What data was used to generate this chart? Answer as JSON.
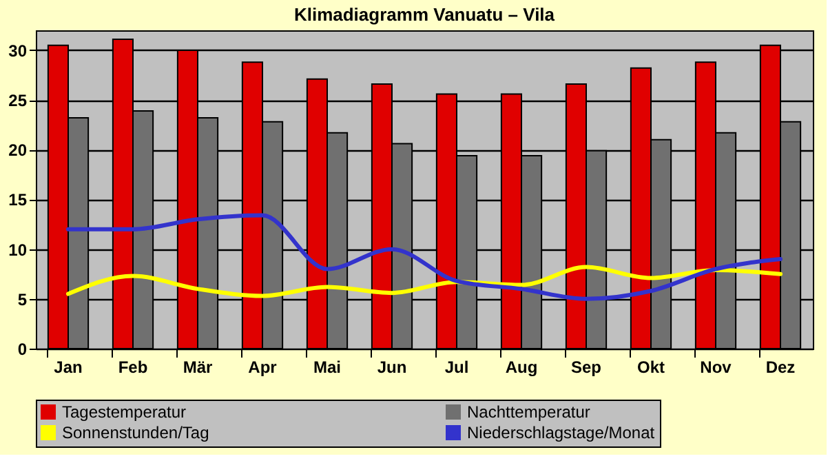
{
  "chart_data": {
    "type": "bar",
    "title": "Klimadiagramm Vanuatu – Vila",
    "categories": [
      "Jan",
      "Feb",
      "Mär",
      "Apr",
      "Mai",
      "Jun",
      "Jul",
      "Aug",
      "Sep",
      "Okt",
      "Nov",
      "Dez"
    ],
    "series": [
      {
        "name": "Tagestemperatur",
        "color": "#e00000",
        "values": [
          30.5,
          31.1,
          30.0,
          28.8,
          27.1,
          26.6,
          25.6,
          25.6,
          26.6,
          28.2,
          28.8,
          30.5
        ]
      },
      {
        "name": "Nachttemperatur",
        "color": "#707070",
        "values": [
          23.2,
          23.9,
          23.2,
          22.8,
          21.7,
          20.6,
          19.4,
          19.4,
          19.9,
          21.0,
          21.7,
          22.8
        ]
      },
      {
        "name": "Sonnenstunden/Tag",
        "type": "line",
        "color": "#ffff00",
        "values": [
          5.5,
          7.3,
          6.0,
          5.3,
          6.2,
          5.6,
          6.7,
          6.4,
          8.2,
          7.1,
          7.9,
          7.5
        ]
      },
      {
        "name": "Niederschlagstage/Monat",
        "type": "line",
        "color": "#3333cc",
        "values": [
          12.0,
          12.0,
          13.0,
          13.4,
          8.0,
          10.0,
          6.8,
          6.0,
          5.0,
          5.8,
          8.0,
          9.0
        ]
      }
    ],
    "ylim": [
      0,
      32
    ],
    "yticks": [
      0,
      5,
      10,
      15,
      20,
      25,
      30
    ],
    "grid": "y",
    "legend": "bottom",
    "marker": "none",
    "line_style": "solid"
  }
}
